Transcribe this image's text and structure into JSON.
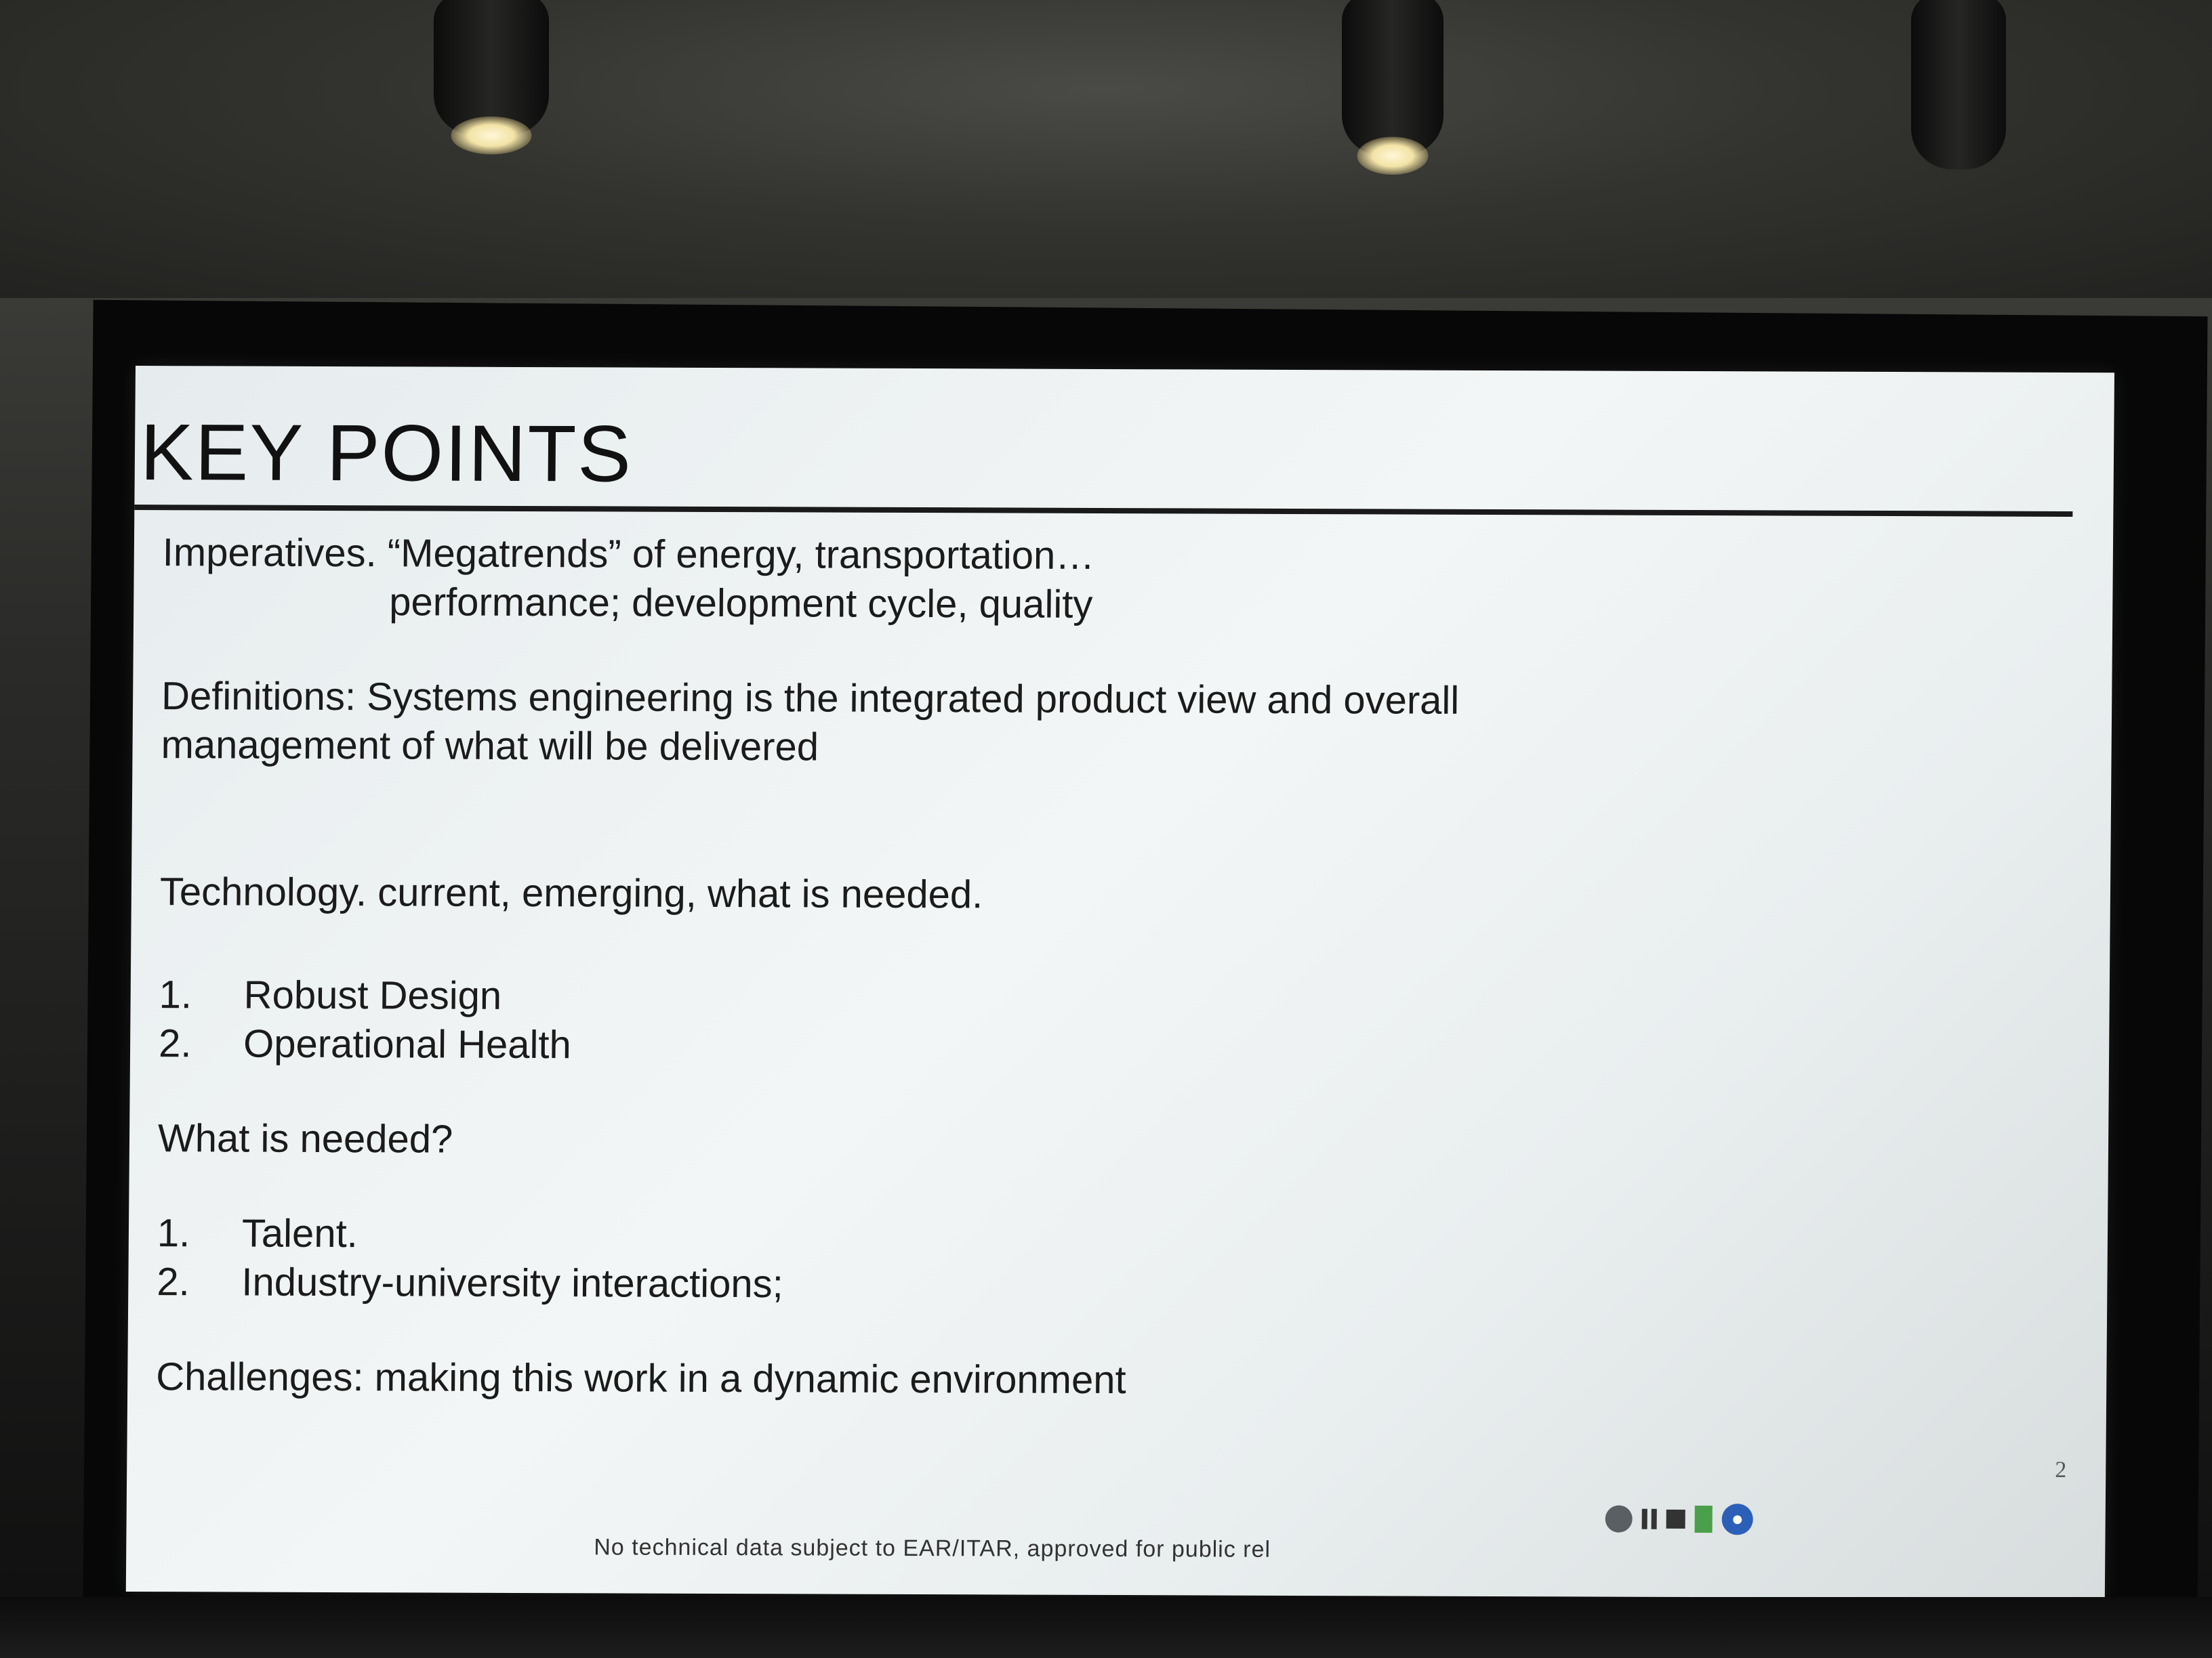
{
  "slide": {
    "title": "KEY POINTS",
    "imperatives_line1": "Imperatives. “Megatrends” of energy, transportation…",
    "imperatives_line2": "performance; development cycle, quality",
    "definitions_line1": "Definitions: Systems engineering is the integrated product view and overall",
    "definitions_line2": "management of what will be delivered",
    "technology": "Technology. current, emerging, what is needed.",
    "technology_list": [
      {
        "num": "1.",
        "text": "Robust Design"
      },
      {
        "num": "2.",
        "text": "Operational Health"
      }
    ],
    "needed_heading": "What is needed?",
    "needed_list": [
      {
        "num": "1.",
        "text": "Talent."
      },
      {
        "num": "2.",
        "text": "Industry-university interactions;"
      }
    ],
    "challenges": "Challenges: making this work in a dynamic environment",
    "page_number": "2",
    "footer": "No technical data subject to EAR/ITAR, approved for public rel"
  },
  "colors": {
    "screen": "#eef2f3",
    "text": "#1b1b1b",
    "frame": "#070707"
  },
  "icons": [
    "record-icon",
    "pause-icon",
    "stop-icon",
    "battery-icon",
    "app-icon"
  ]
}
